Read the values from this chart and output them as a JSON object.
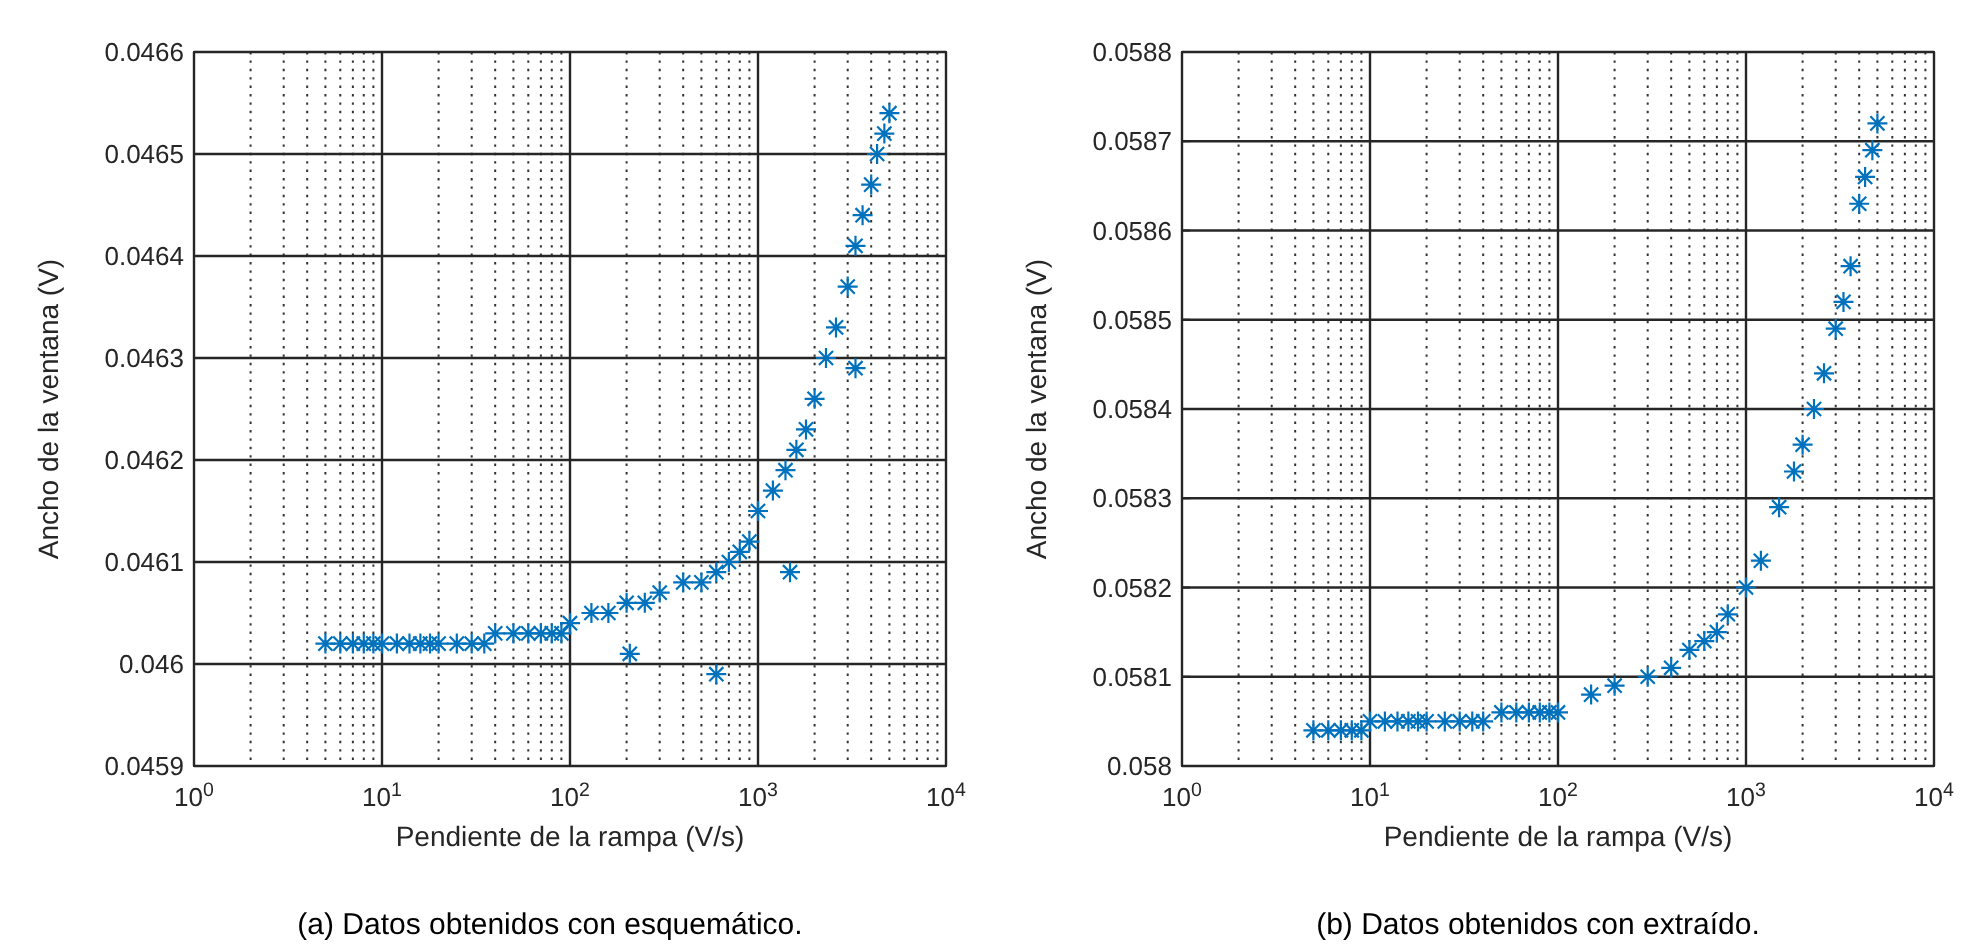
{
  "chart_data": [
    {
      "type": "scatter",
      "xlabel": "Pendiente de la rampa (V/s)",
      "ylabel": "Ancho de la ventana (V)",
      "annotations": [
        "(a) Datos obtenidos con esquemático."
      ],
      "log": "x",
      "grid": true,
      "marker": "cross",
      "xlim": [
        1,
        10000
      ],
      "xticks": [
        {
          "value": 1,
          "label": "10$^{0}$"
        },
        {
          "value": 10,
          "label": "10$^{1}$"
        },
        {
          "value": 100,
          "label": "10$^{2}$"
        },
        {
          "value": 1000,
          "label": "10$^{3}$"
        },
        {
          "value": 10000,
          "label": "10$^{4}$"
        }
      ],
      "ylim": [
        0.0459,
        0.0466
      ],
      "yticks": [
        0.0459,
        0.046,
        0.0461,
        0.0462,
        0.0463,
        0.0464,
        0.0465,
        0.0466
      ],
      "series": [
        {
          "color": "#0072bd",
          "x": [
            5,
            6,
            7,
            8,
            9,
            10,
            12,
            14,
            16,
            18,
            20,
            25,
            30,
            35,
            40,
            50,
            60,
            70,
            80,
            90,
            100,
            130,
            160,
            200,
            250,
            300,
            400,
            500,
            600,
            700,
            800,
            900,
            1000,
            1200,
            1400,
            1600,
            1800,
            2000,
            2300,
            2600,
            3000,
            3300,
            3600,
            4000,
            4300,
            4700,
            5000,
            208,
            600,
            1480,
            3300
          ],
          "values": [
            0.04602,
            0.04602,
            0.04602,
            0.04602,
            0.04602,
            0.04602,
            0.04602,
            0.04602,
            0.04602,
            0.04602,
            0.04602,
            0.04602,
            0.04602,
            0.04602,
            0.04603,
            0.04603,
            0.04603,
            0.04603,
            0.04603,
            0.04603,
            0.04604,
            0.04605,
            0.04605,
            0.04606,
            0.04606,
            0.04607,
            0.04608,
            0.04608,
            0.04609,
            0.0461,
            0.04611,
            0.04612,
            0.04615,
            0.04617,
            0.04619,
            0.04621,
            0.04623,
            0.04626,
            0.0463,
            0.04633,
            0.04637,
            0.04641,
            0.04644,
            0.04647,
            0.0465,
            0.04652,
            0.04654,
            0.04601,
            0.04599,
            0.04609,
            0.04629
          ]
        }
      ]
    },
    {
      "type": "scatter",
      "xlabel": "Pendiente de la rampa (V/s)",
      "ylabel": "Ancho de la ventana (V)",
      "annotations": [
        "(b) Datos obtenidos con extraído."
      ],
      "log": "x",
      "grid": true,
      "marker": "cross",
      "xlim": [
        1,
        10000
      ],
      "xticks": [
        {
          "value": 1,
          "label": "10$^{0}$"
        },
        {
          "value": 10,
          "label": "10$^{1}$"
        },
        {
          "value": 100,
          "label": "10$^{2}$"
        },
        {
          "value": 1000,
          "label": "10$^{3}$"
        },
        {
          "value": 10000,
          "label": "10$^{4}$"
        }
      ],
      "ylim": [
        0.058,
        0.0588
      ],
      "yticks": [
        0.058,
        0.0581,
        0.0582,
        0.0583,
        0.0584,
        0.0585,
        0.0586,
        0.0587,
        0.0588
      ],
      "series": [
        {
          "color": "#0072bd",
          "x": [
            5,
            6,
            7,
            8,
            9,
            10,
            12,
            14,
            16,
            18,
            20,
            25,
            30,
            35,
            40,
            50,
            60,
            70,
            80,
            90,
            100,
            150,
            200,
            300,
            400,
            500,
            600,
            700,
            800,
            1000,
            1200,
            1500,
            1800,
            2000,
            2300,
            2600,
            3000,
            3300,
            3600,
            4000,
            4300,
            4700,
            5000
          ],
          "values": [
            0.05804,
            0.05804,
            0.05804,
            0.05804,
            0.05804,
            0.05805,
            0.05805,
            0.05805,
            0.05805,
            0.05805,
            0.05805,
            0.05805,
            0.05805,
            0.05805,
            0.05805,
            0.05806,
            0.05806,
            0.05806,
            0.05806,
            0.05806,
            0.05806,
            0.05808,
            0.05809,
            0.0581,
            0.05811,
            0.05813,
            0.05814,
            0.05815,
            0.05817,
            0.0582,
            0.05823,
            0.05829,
            0.05833,
            0.05836,
            0.0584,
            0.05844,
            0.05849,
            0.05852,
            0.05856,
            0.05863,
            0.05866,
            0.05869,
            0.05872
          ]
        }
      ]
    }
  ]
}
